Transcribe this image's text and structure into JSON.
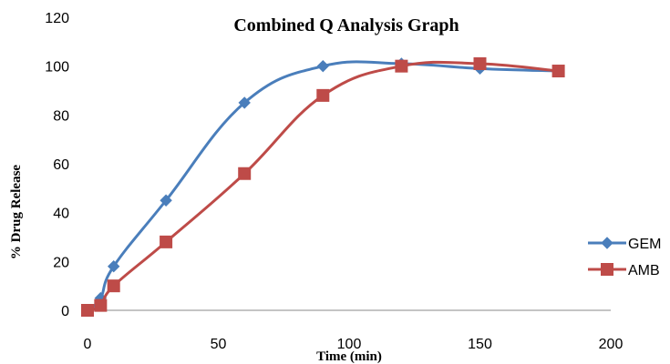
{
  "chart_data": {
    "type": "line",
    "title": "Combined Q Analysis Graph",
    "xlabel": "Time (min)",
    "ylabel": "% Drug Release",
    "xlim": [
      0,
      200
    ],
    "ylim": [
      0,
      120
    ],
    "xticks": [
      0,
      50,
      100,
      150,
      200
    ],
    "yticks": [
      0,
      20,
      40,
      60,
      80,
      100,
      120
    ],
    "grid": false,
    "smooth": true,
    "legend_position": "right",
    "series": [
      {
        "name": "GEM",
        "color": "#4a7ebb",
        "marker": "diamond",
        "x": [
          0,
          5,
          10,
          30,
          60,
          90,
          120,
          150,
          180
        ],
        "values": [
          0,
          5,
          18,
          45,
          85,
          100,
          101,
          99,
          98
        ]
      },
      {
        "name": "AMB",
        "color": "#be4b48",
        "marker": "square",
        "x": [
          0,
          5,
          10,
          30,
          60,
          90,
          120,
          150,
          180
        ],
        "values": [
          0,
          2,
          10,
          28,
          56,
          88,
          100,
          101,
          98
        ]
      }
    ]
  }
}
